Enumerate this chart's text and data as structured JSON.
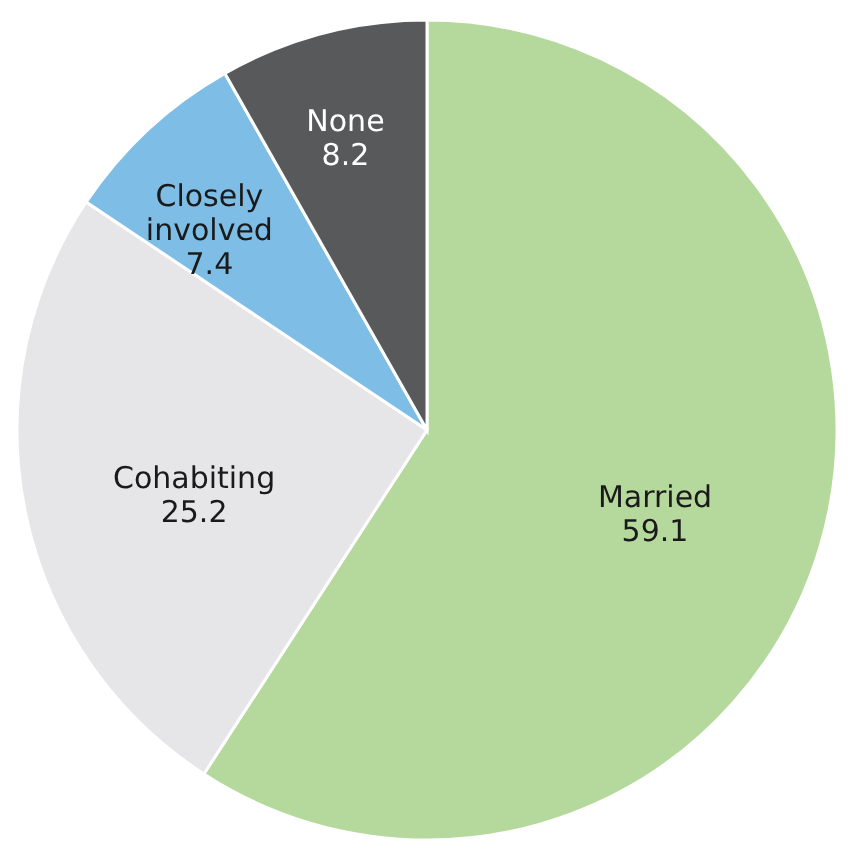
{
  "chart_data": {
    "type": "pie",
    "categories": [
      "Married",
      "Cohabiting",
      "Closely\ninvolved",
      "None"
    ],
    "values": [
      59.1,
      25.2,
      7.4,
      8.2
    ],
    "colors": [
      "#b5d99c",
      "#e6e6e8",
      "#7dbde6",
      "#58595b"
    ],
    "data_labels": true
  }
}
